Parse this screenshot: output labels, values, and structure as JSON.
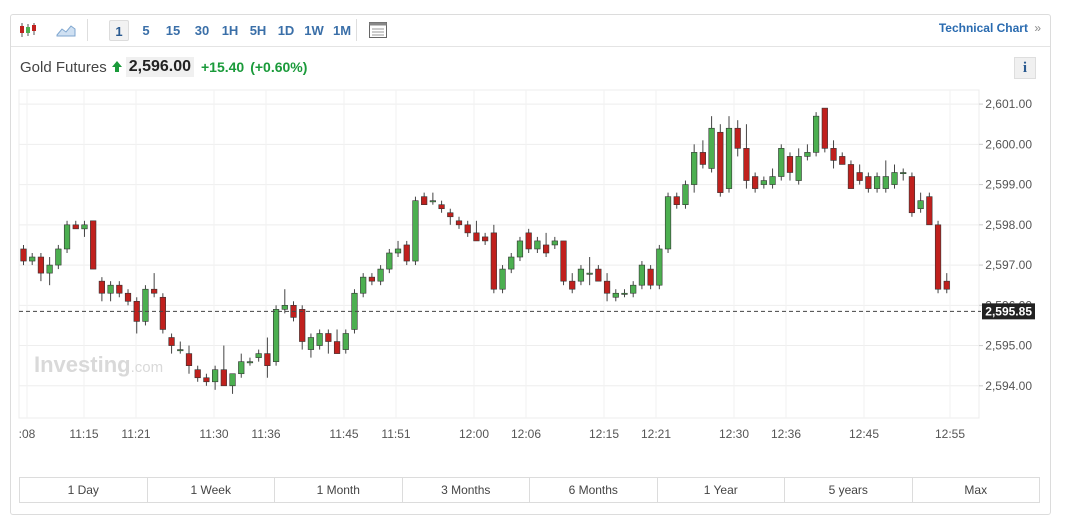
{
  "toolbar": {
    "timeframes": [
      "1",
      "5",
      "15",
      "30",
      "1H",
      "5H",
      "1D",
      "1W",
      "1M"
    ],
    "active_timeframe": "1",
    "technical_chart_label": "Technical Chart",
    "technical_chart_arrow": "»"
  },
  "quote": {
    "name": "Gold Futures",
    "price": "2,596.00",
    "change": "+15.40",
    "change_pct": "(+0.60%)",
    "direction": "up",
    "color_up": "#1a9a3a"
  },
  "info_label": "i",
  "watermark": {
    "main": "Investing",
    "suffix": ".com"
  },
  "chart_data": {
    "type": "candlestick",
    "x_labels": [
      ":08",
      "11:15",
      "11:21",
      "11:30",
      "11:36",
      "11:45",
      "11:51",
      "12:00",
      "12:06",
      "12:15",
      "12:21",
      "12:30",
      "12:36",
      "12:45",
      "12:55"
    ],
    "y_ticks": [
      2594.0,
      2595.0,
      2596.0,
      2597.0,
      2598.0,
      2599.0,
      2600.0,
      2601.0
    ],
    "y_tick_labels": [
      "2,594.00",
      "2,595.00",
      "2,596.00",
      "2,597.00",
      "2,598.00",
      "2,599.00",
      "2,600.00",
      "2,601.00"
    ],
    "ylim": [
      2593.2,
      2601.35
    ],
    "current_price": 2595.85,
    "current_price_label": "2,595.85",
    "colors": {
      "up": "#4caf50",
      "down": "#c0201d"
    },
    "candles": [
      [
        2597.4,
        2597.5,
        2597.0,
        2597.1
      ],
      [
        2597.1,
        2597.3,
        2597.0,
        2597.2
      ],
      [
        2597.2,
        2597.3,
        2596.6,
        2596.8
      ],
      [
        2596.8,
        2597.2,
        2596.5,
        2597.0
      ],
      [
        2597.0,
        2597.5,
        2596.9,
        2597.4
      ],
      [
        2597.4,
        2598.1,
        2597.3,
        2598.0
      ],
      [
        2598.0,
        2598.1,
        2597.9,
        2597.9
      ],
      [
        2597.9,
        2598.1,
        2597.7,
        2598.0
      ],
      [
        2598.1,
        2598.1,
        2596.9,
        2596.9
      ],
      [
        2596.6,
        2596.7,
        2596.1,
        2596.3
      ],
      [
        2596.3,
        2596.6,
        2596.1,
        2596.5
      ],
      [
        2596.5,
        2596.6,
        2596.2,
        2596.3
      ],
      [
        2596.3,
        2596.4,
        2596.0,
        2596.1
      ],
      [
        2596.1,
        2596.2,
        2595.3,
        2595.6
      ],
      [
        2595.6,
        2596.5,
        2595.5,
        2596.4
      ],
      [
        2596.4,
        2596.8,
        2596.2,
        2596.3
      ],
      [
        2596.2,
        2596.3,
        2595.3,
        2595.4
      ],
      [
        2595.2,
        2595.3,
        2594.8,
        2595.0
      ],
      [
        2594.9,
        2595.1,
        2594.8,
        2594.9
      ],
      [
        2594.8,
        2595.0,
        2594.3,
        2594.5
      ],
      [
        2594.4,
        2594.5,
        2594.1,
        2594.2
      ],
      [
        2594.2,
        2594.3,
        2594.0,
        2594.1
      ],
      [
        2594.1,
        2594.5,
        2593.9,
        2594.4
      ],
      [
        2594.4,
        2595.0,
        2594.0,
        2594.0
      ],
      [
        2594.0,
        2594.3,
        2593.8,
        2594.3
      ],
      [
        2594.3,
        2594.8,
        2594.2,
        2594.6
      ],
      [
        2594.6,
        2594.7,
        2594.5,
        2594.6
      ],
      [
        2594.7,
        2594.9,
        2594.6,
        2594.8
      ],
      [
        2594.8,
        2595.2,
        2594.2,
        2594.5
      ],
      [
        2594.6,
        2596.0,
        2594.5,
        2595.9
      ],
      [
        2595.9,
        2596.4,
        2595.8,
        2596.0
      ],
      [
        2596.0,
        2596.1,
        2595.6,
        2595.7
      ],
      [
        2595.9,
        2596.0,
        2594.9,
        2595.1
      ],
      [
        2594.9,
        2595.3,
        2594.7,
        2595.2
      ],
      [
        2595.0,
        2595.4,
        2594.9,
        2595.3
      ],
      [
        2595.3,
        2595.4,
        2594.8,
        2595.1
      ],
      [
        2595.1,
        2595.4,
        2594.8,
        2594.8
      ],
      [
        2594.9,
        2595.4,
        2594.8,
        2595.3
      ],
      [
        2595.4,
        2596.4,
        2595.3,
        2596.3
      ],
      [
        2596.3,
        2596.8,
        2596.2,
        2596.7
      ],
      [
        2596.7,
        2596.8,
        2596.5,
        2596.6
      ],
      [
        2596.6,
        2597.0,
        2596.5,
        2596.9
      ],
      [
        2596.9,
        2597.4,
        2596.8,
        2597.3
      ],
      [
        2597.3,
        2597.6,
        2597.2,
        2597.4
      ],
      [
        2597.5,
        2597.6,
        2597.0,
        2597.1
      ],
      [
        2597.1,
        2598.7,
        2597.0,
        2598.6
      ],
      [
        2598.7,
        2598.8,
        2598.5,
        2598.5
      ],
      [
        2598.6,
        2598.8,
        2598.5,
        2598.6
      ],
      [
        2598.5,
        2598.6,
        2598.3,
        2598.4
      ],
      [
        2598.3,
        2598.4,
        2598.0,
        2598.2
      ],
      [
        2598.1,
        2598.2,
        2597.9,
        2598.0
      ],
      [
        2598.0,
        2598.1,
        2597.7,
        2597.8
      ],
      [
        2597.8,
        2598.1,
        2597.6,
        2597.6
      ],
      [
        2597.7,
        2597.8,
        2597.5,
        2597.6
      ],
      [
        2597.8,
        2598.0,
        2596.3,
        2596.4
      ],
      [
        2596.4,
        2597.0,
        2596.3,
        2596.9
      ],
      [
        2596.9,
        2597.3,
        2596.8,
        2597.2
      ],
      [
        2597.2,
        2597.7,
        2597.1,
        2597.6
      ],
      [
        2597.8,
        2597.9,
        2597.3,
        2597.4
      ],
      [
        2597.4,
        2597.7,
        2597.3,
        2597.6
      ],
      [
        2597.5,
        2597.8,
        2597.2,
        2597.3
      ],
      [
        2597.5,
        2597.7,
        2597.4,
        2597.6
      ],
      [
        2597.6,
        2597.6,
        2596.5,
        2596.6
      ],
      [
        2596.6,
        2596.8,
        2596.3,
        2596.4
      ],
      [
        2596.6,
        2597.0,
        2596.5,
        2596.9
      ],
      [
        2596.8,
        2597.2,
        2596.5,
        2596.8
      ],
      [
        2596.9,
        2597.0,
        2596.6,
        2596.6
      ],
      [
        2596.6,
        2596.8,
        2596.1,
        2596.3
      ],
      [
        2596.2,
        2596.4,
        2596.1,
        2596.3
      ],
      [
        2596.3,
        2596.4,
        2596.2,
        2596.3
      ],
      [
        2596.3,
        2596.6,
        2596.2,
        2596.5
      ],
      [
        2596.5,
        2597.1,
        2596.4,
        2597.0
      ],
      [
        2596.9,
        2597.0,
        2596.4,
        2596.5
      ],
      [
        2596.5,
        2597.5,
        2596.4,
        2597.4
      ],
      [
        2597.4,
        2598.8,
        2597.3,
        2598.7
      ],
      [
        2598.7,
        2598.8,
        2598.4,
        2598.5
      ],
      [
        2598.5,
        2599.1,
        2598.4,
        2599.0
      ],
      [
        2599.0,
        2600.0,
        2598.8,
        2599.8
      ],
      [
        2599.8,
        2600.1,
        2599.4,
        2599.5
      ],
      [
        2599.4,
        2600.7,
        2599.3,
        2600.4
      ],
      [
        2600.3,
        2600.5,
        2598.7,
        2598.8
      ],
      [
        2598.9,
        2600.7,
        2598.8,
        2600.4
      ],
      [
        2600.4,
        2600.6,
        2599.7,
        2599.9
      ],
      [
        2599.9,
        2600.5,
        2598.9,
        2599.1
      ],
      [
        2599.2,
        2599.3,
        2598.8,
        2598.9
      ],
      [
        2599.0,
        2599.2,
        2598.9,
        2599.1
      ],
      [
        2599.0,
        2599.4,
        2598.9,
        2599.2
      ],
      [
        2599.2,
        2600.0,
        2599.1,
        2599.9
      ],
      [
        2599.7,
        2599.8,
        2599.1,
        2599.3
      ],
      [
        2599.1,
        2599.9,
        2599.0,
        2599.7
      ],
      [
        2599.7,
        2600.0,
        2599.6,
        2599.8
      ],
      [
        2599.8,
        2600.8,
        2599.7,
        2600.7
      ],
      [
        2600.9,
        2600.9,
        2599.8,
        2599.9
      ],
      [
        2599.9,
        2600.1,
        2599.4,
        2599.6
      ],
      [
        2599.7,
        2599.8,
        2599.5,
        2599.5
      ],
      [
        2599.5,
        2599.6,
        2598.9,
        2598.9
      ],
      [
        2599.3,
        2599.5,
        2599.0,
        2599.1
      ],
      [
        2599.2,
        2599.3,
        2598.8,
        2598.9
      ],
      [
        2598.9,
        2599.3,
        2598.8,
        2599.2
      ],
      [
        2598.9,
        2599.6,
        2598.8,
        2599.2
      ],
      [
        2599.0,
        2599.5,
        2598.9,
        2599.3
      ],
      [
        2599.3,
        2599.4,
        2599.1,
        2599.3
      ],
      [
        2599.2,
        2599.3,
        2598.2,
        2598.3
      ],
      [
        2598.4,
        2598.8,
        2598.3,
        2598.6
      ],
      [
        2598.7,
        2598.8,
        2598.0,
        2598.0
      ],
      [
        2598.0,
        2598.1,
        2596.3,
        2596.4
      ],
      [
        2596.6,
        2596.8,
        2596.3,
        2596.4
      ]
    ]
  },
  "ranges": [
    "1 Day",
    "1 Week",
    "1 Month",
    "3 Months",
    "6 Months",
    "1 Year",
    "5 years",
    "Max"
  ]
}
